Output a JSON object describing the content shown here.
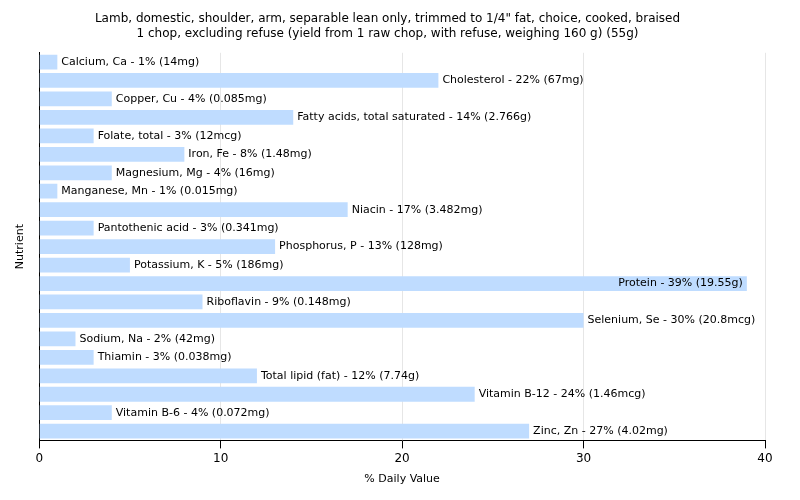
{
  "chart_data": {
    "type": "bar",
    "title": [
      "Lamb, domestic, shoulder, arm, separable lean only, trimmed to 1/4\" fat, choice, cooked, braised",
      "1 chop, excluding refuse (yield from 1 raw chop, with refuse, weighing 160 g) (55g)"
    ],
    "x_label": "% Daily Value",
    "y_label": "Nutrient",
    "orientation": "horizontal",
    "categories": [
      "Calcium, Ca - 1% (14mg)",
      "Cholesterol - 22% (67mg)",
      "Copper, Cu - 4% (0.085mg)",
      "Fatty acids, total saturated - 14% (2.766g)",
      "Folate, total - 3% (12mcg)",
      "Iron, Fe - 8% (1.48mg)",
      "Magnesium, Mg - 4% (16mg)",
      "Manganese, Mn - 1% (0.015mg)",
      "Niacin - 17% (3.482mg)",
      "Pantothenic acid - 3% (0.341mg)",
      "Phosphorus, P - 13% (128mg)",
      "Potassium, K - 5% (186mg)",
      "Protein - 39% (19.55g)",
      "Riboflavin - 9% (0.148mg)",
      "Selenium, Se - 30% (20.8mcg)",
      "Sodium, Na - 2% (42mg)",
      "Thiamin - 3% (0.038mg)",
      "Total lipid (fat) - 12% (7.74g)",
      "Vitamin B-12 - 24% (1.46mcg)",
      "Vitamin B-6 - 4% (0.072mg)",
      "Zinc, Zn - 27% (4.02mg)"
    ],
    "values": [
      1,
      22,
      4,
      14,
      3,
      8,
      4,
      1,
      17,
      3,
      13,
      5,
      39,
      9,
      30,
      2,
      3,
      12,
      24,
      4,
      27
    ],
    "color": "#bfdcff",
    "xlim": [
      0,
      40
    ],
    "xticks": [
      0,
      10,
      20,
      30,
      40
    ],
    "grid": true,
    "tick_labels": "x"
  }
}
